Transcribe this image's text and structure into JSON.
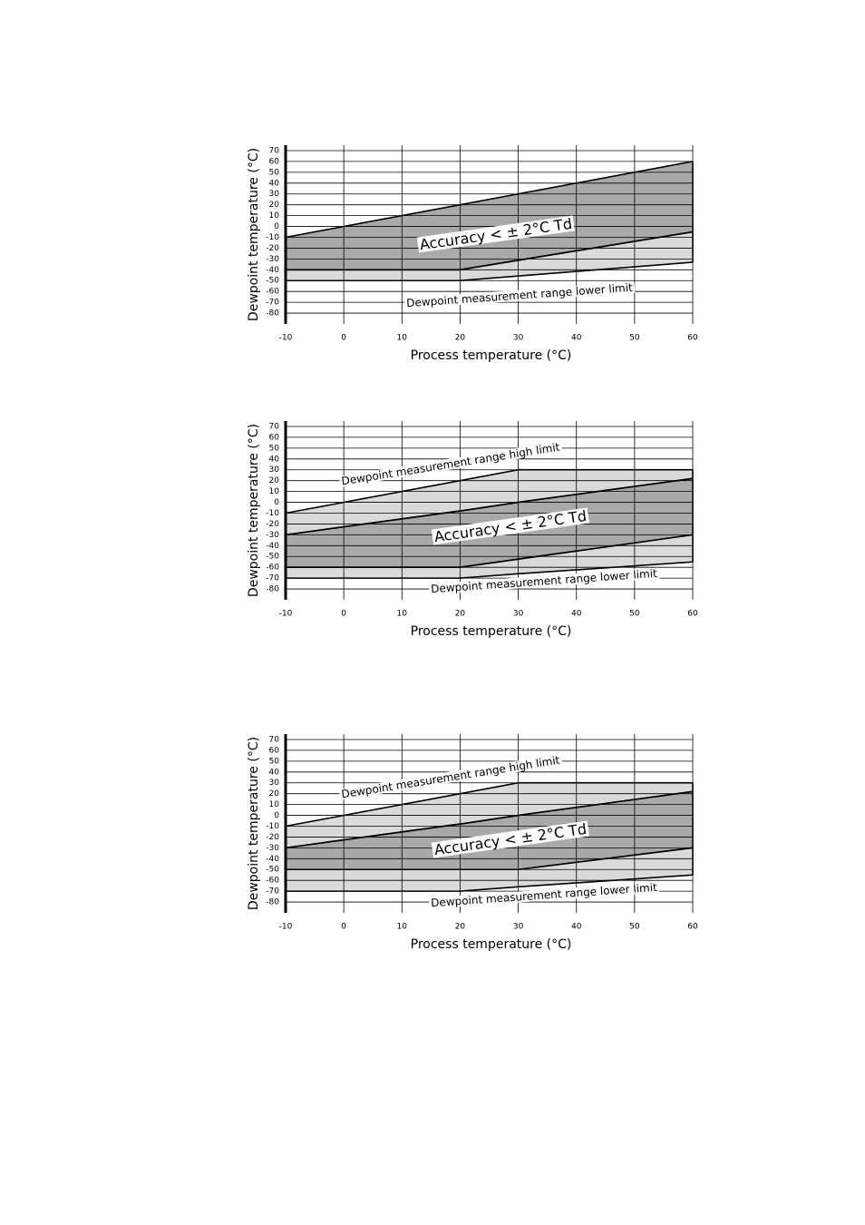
{
  "chart_data": [
    {
      "type": "band",
      "xlabel": "Process temperature (°C)",
      "ylabel": "Dewpoint temperature (°C)",
      "xlim": [
        -10,
        60
      ],
      "xticks": [
        -10,
        0,
        10,
        20,
        30,
        40,
        50,
        60
      ],
      "ylim": [
        -90,
        75
      ],
      "yticks": [
        70,
        60,
        50,
        40,
        30,
        20,
        10,
        0,
        -10,
        -20,
        -30,
        -40,
        -50,
        -60,
        -70,
        -80
      ],
      "grid": true,
      "annotations": [
        "Accuracy < ± 2°C Td",
        "Dewpoint measurement range lower limit"
      ],
      "series": [
        {
          "color": "#a9a9a9",
          "x": [
            -10,
            20,
            60
          ],
          "upper": [
            -10,
            20,
            60
          ],
          "lower": [
            -40,
            -40,
            -5
          ]
        },
        {
          "color": "#dadada",
          "x": [
            -10,
            20,
            60
          ],
          "upper": [
            -40,
            -40,
            -5
          ],
          "lower": [
            -50,
            -50,
            -33
          ]
        }
      ]
    },
    {
      "type": "band",
      "xlabel": "Process temperature (°C)",
      "ylabel": "Dewpoint temperature (°C)",
      "xlim": [
        -10,
        60
      ],
      "xticks": [
        -10,
        0,
        10,
        20,
        30,
        40,
        50,
        60
      ],
      "ylim": [
        -90,
        75
      ],
      "yticks": [
        70,
        60,
        50,
        40,
        30,
        20,
        10,
        0,
        -10,
        -20,
        -30,
        -40,
        -50,
        -60,
        -70,
        -80
      ],
      "grid": true,
      "annotations": [
        "Dewpoint measurement range high limit",
        "Accuracy < ± 2°C Td",
        "Dewpoint measurement range lower limit"
      ],
      "series": [
        {
          "color": "#dadada",
          "x": [
            -10,
            20,
            30,
            60
          ],
          "upper": [
            -10,
            20,
            30,
            30
          ],
          "lower": [
            -30,
            -8,
            0,
            22
          ]
        },
        {
          "color": "#a9a9a9",
          "x": [
            -10,
            20,
            30,
            60
          ],
          "upper": [
            -30,
            -8,
            0,
            22
          ],
          "lower": [
            -60,
            -60,
            -52.5,
            -30
          ]
        },
        {
          "color": "#dadada",
          "x": [
            -10,
            20,
            30,
            60
          ],
          "upper": [
            -60,
            -60,
            -52.5,
            -30
          ],
          "lower": [
            -70,
            -70,
            -66,
            -55
          ]
        }
      ]
    },
    {
      "type": "band",
      "xlabel": "Process temperature (°C)",
      "ylabel": "Dewpoint temperature (°C)",
      "xlim": [
        -10,
        60
      ],
      "xticks": [
        -10,
        0,
        10,
        20,
        30,
        40,
        50,
        60
      ],
      "ylim": [
        -90,
        75
      ],
      "yticks": [
        70,
        60,
        50,
        40,
        30,
        20,
        10,
        0,
        -10,
        -20,
        -30,
        -40,
        -50,
        -60,
        -70,
        -80
      ],
      "grid": true,
      "annotations": [
        "Dewpoint measurement range high limit",
        "Accuracy < ± 2°C Td",
        "Dewpoint measurement range lower limit"
      ],
      "series": [
        {
          "color": "#dadada",
          "x": [
            -10,
            20,
            30,
            60
          ],
          "upper": [
            -10,
            20,
            30,
            30
          ],
          "lower": [
            -30,
            -8,
            0,
            22
          ]
        },
        {
          "color": "#a9a9a9",
          "x": [
            -10,
            20,
            30,
            60
          ],
          "upper": [
            -30,
            -8,
            0,
            22
          ],
          "lower": [
            -50,
            -50,
            -50,
            -30
          ]
        },
        {
          "color": "#dadada",
          "x": [
            -10,
            20,
            30,
            60
          ],
          "upper": [
            -50,
            -50,
            -50,
            -30
          ],
          "lower": [
            -70,
            -70,
            -66,
            -55
          ]
        }
      ]
    }
  ]
}
